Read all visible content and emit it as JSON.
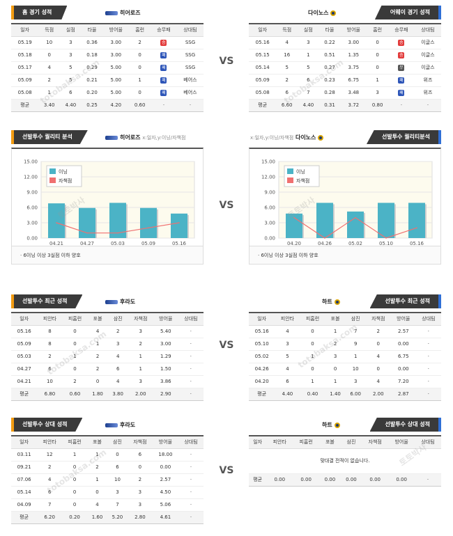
{
  "vs_label": "VS",
  "watermark_ko": "토토박사",
  "watermark_en": "totobaksa.com",
  "colors": {
    "accent_left": "#f39c12",
    "accent_right": "#2f6fd6",
    "bar": "#4bb3c6",
    "line": "#f07070"
  },
  "section1": {
    "left": {
      "badge": "홈 경기 성적",
      "team": "히어로즈",
      "headers": [
        "일자",
        "득점",
        "실점",
        "타율",
        "방어율",
        "홈런",
        "승무패",
        "상대팀"
      ],
      "rows": [
        [
          "05.19",
          "10",
          "3",
          "0.36",
          "3.00",
          "2",
          "win",
          "SSG"
        ],
        [
          "05.18",
          "0",
          "3",
          "0.18",
          "3.00",
          "0",
          "lose",
          "SSG"
        ],
        [
          "05.17",
          "4",
          "5",
          "0.29",
          "5.00",
          "0",
          "lose",
          "SSG"
        ],
        [
          "05.09",
          "2",
          "5",
          "0.21",
          "5.00",
          "1",
          "lose",
          "베어스"
        ],
        [
          "05.08",
          "1",
          "6",
          "0.20",
          "5.00",
          "0",
          "lose",
          "베어스"
        ]
      ],
      "avg": [
        "평균",
        "3.40",
        "4.40",
        "0.25",
        "4.20",
        "0.60",
        "·",
        "·"
      ]
    },
    "right": {
      "badge": "어웨이 경기 성적",
      "team": "다이노스",
      "headers": [
        "일자",
        "득점",
        "실점",
        "타율",
        "방어율",
        "홈런",
        "승무패",
        "상대팀"
      ],
      "rows": [
        [
          "05.16",
          "4",
          "3",
          "0.22",
          "3.00",
          "0",
          "win",
          "이글스"
        ],
        [
          "05.15",
          "16",
          "1",
          "0.51",
          "1.35",
          "0",
          "win",
          "이글스"
        ],
        [
          "05.14",
          "5",
          "5",
          "0.27",
          "3.75",
          "0",
          "draw",
          "이글스"
        ],
        [
          "05.09",
          "2",
          "6",
          "0.23",
          "6.75",
          "1",
          "lose",
          "위즈"
        ],
        [
          "05.08",
          "6",
          "7",
          "0.28",
          "3.48",
          "3",
          "lose",
          "위즈"
        ]
      ],
      "avg": [
        "평균",
        "6.60",
        "4.40",
        "0.31",
        "3.72",
        "0.80",
        "·",
        "·"
      ]
    },
    "result_glyph": {
      "win": "승",
      "lose": "패",
      "draw": "무"
    }
  },
  "section2": {
    "left": {
      "badge": "선발투수 퀄리티 분석",
      "team": "히어로즈",
      "subtitle": "x:일자,y:이닝/자책점"
    },
    "right": {
      "badge": "선발투수 퀄리티분석",
      "team": "다이노스",
      "subtitle": "x:일자,y:이닝/자책점"
    },
    "note": "6이닝 이상 3실점 이하 양호"
  },
  "chart_data": [
    {
      "type": "bar",
      "categories": [
        "04.21",
        "04.27",
        "05.03",
        "05.09",
        "05.16"
      ],
      "series": [
        {
          "name": "이닝",
          "type": "bar",
          "values": [
            6.8,
            5.9,
            6.9,
            5.9,
            4.8
          ]
        },
        {
          "name": "자책점",
          "type": "line",
          "values": [
            3,
            1,
            1,
            2,
            3
          ]
        }
      ],
      "ylim": [
        0,
        15
      ],
      "yticks": [
        "0.00",
        "3.00",
        "6.00",
        "9.00",
        "12.00",
        "15.00"
      ],
      "legend": "top-left",
      "grid": true
    },
    {
      "type": "bar",
      "categories": [
        "04.20",
        "04.26",
        "05.02",
        "05.10",
        "05.16"
      ],
      "series": [
        {
          "name": "이닝",
          "type": "bar",
          "values": [
            4.8,
            6.9,
            5.2,
            6.9,
            6.9
          ]
        },
        {
          "name": "자책점",
          "type": "line",
          "values": [
            4,
            0,
            4,
            0,
            2
          ]
        }
      ],
      "ylim": [
        0,
        15
      ],
      "yticks": [
        "0.00",
        "3.00",
        "6.00",
        "9.00",
        "12.00",
        "15.00"
      ],
      "legend": "top-left",
      "grid": true
    }
  ],
  "section3": {
    "left": {
      "badge": "선발투수 최근 성적",
      "team": "후라도",
      "headers": [
        "일자",
        "피안타",
        "피홈런",
        "포볼",
        "삼진",
        "자책점",
        "방어율",
        "상대팀"
      ],
      "rows": [
        [
          "05.16",
          "8",
          "0",
          "4",
          "2",
          "3",
          "5.40",
          "·"
        ],
        [
          "05.09",
          "8",
          "0",
          "1",
          "3",
          "2",
          "3.00",
          "·"
        ],
        [
          "05.03",
          "2",
          "1",
          "2",
          "4",
          "1",
          "1.29",
          "·"
        ],
        [
          "04.27",
          "6",
          "0",
          "2",
          "6",
          "1",
          "1.50",
          "·"
        ],
        [
          "04.21",
          "10",
          "2",
          "0",
          "4",
          "3",
          "3.86",
          "·"
        ]
      ],
      "avg": [
        "평균",
        "6.80",
        "0.60",
        "1.80",
        "3.80",
        "2.00",
        "2.90",
        "·"
      ]
    },
    "right": {
      "badge": "선발투수 최근 성적",
      "team": "하트",
      "headers": [
        "일자",
        "피안타",
        "피홈런",
        "포볼",
        "삼진",
        "자책점",
        "방어율",
        "상대팀"
      ],
      "rows": [
        [
          "05.16",
          "4",
          "0",
          "1",
          "7",
          "2",
          "2.57",
          "·"
        ],
        [
          "05.10",
          "3",
          "0",
          "2",
          "9",
          "0",
          "0.00",
          "·"
        ],
        [
          "05.02",
          "5",
          "1",
          "3",
          "1",
          "4",
          "6.75",
          "·"
        ],
        [
          "04.26",
          "4",
          "0",
          "0",
          "10",
          "0",
          "0.00",
          "·"
        ],
        [
          "04.20",
          "6",
          "1",
          "1",
          "3",
          "4",
          "7.20",
          "·"
        ]
      ],
      "avg": [
        "평균",
        "4.40",
        "0.40",
        "1.40",
        "6.00",
        "2.00",
        "2.87",
        "·"
      ]
    }
  },
  "section4": {
    "left": {
      "badge": "선발투수 상대 성적",
      "team": "후라도",
      "headers": [
        "일자",
        "피안타",
        "피홈런",
        "포볼",
        "삼진",
        "자책점",
        "방어율",
        "상대팀"
      ],
      "rows": [
        [
          "03.11",
          "12",
          "1",
          "1",
          "0",
          "6",
          "18.00",
          "·"
        ],
        [
          "09.21",
          "2",
          "0",
          "2",
          "6",
          "0",
          "0.00",
          "·"
        ],
        [
          "07.06",
          "4",
          "0",
          "1",
          "10",
          "2",
          "2.57",
          "·"
        ],
        [
          "05.14",
          "6",
          "0",
          "0",
          "3",
          "3",
          "4.50",
          "·"
        ],
        [
          "04.09",
          "7",
          "0",
          "4",
          "7",
          "3",
          "5.06",
          "·"
        ]
      ],
      "avg": [
        "평균",
        "6.20",
        "0.20",
        "1.60",
        "5.20",
        "2.80",
        "4.61",
        "·"
      ]
    },
    "right": {
      "badge": "선발투수 상대 성적",
      "team": "하트",
      "headers": [
        "일자",
        "피안타",
        "피홈런",
        "포볼",
        "삼진",
        "자책점",
        "방어율",
        "상대팀"
      ],
      "empty_msg": "맞대결 전적이 없습니다.",
      "avg": [
        "평균",
        "0.00",
        "0.00",
        "0.00",
        "0.00",
        "0.00",
        "0.00",
        "·"
      ]
    }
  }
}
